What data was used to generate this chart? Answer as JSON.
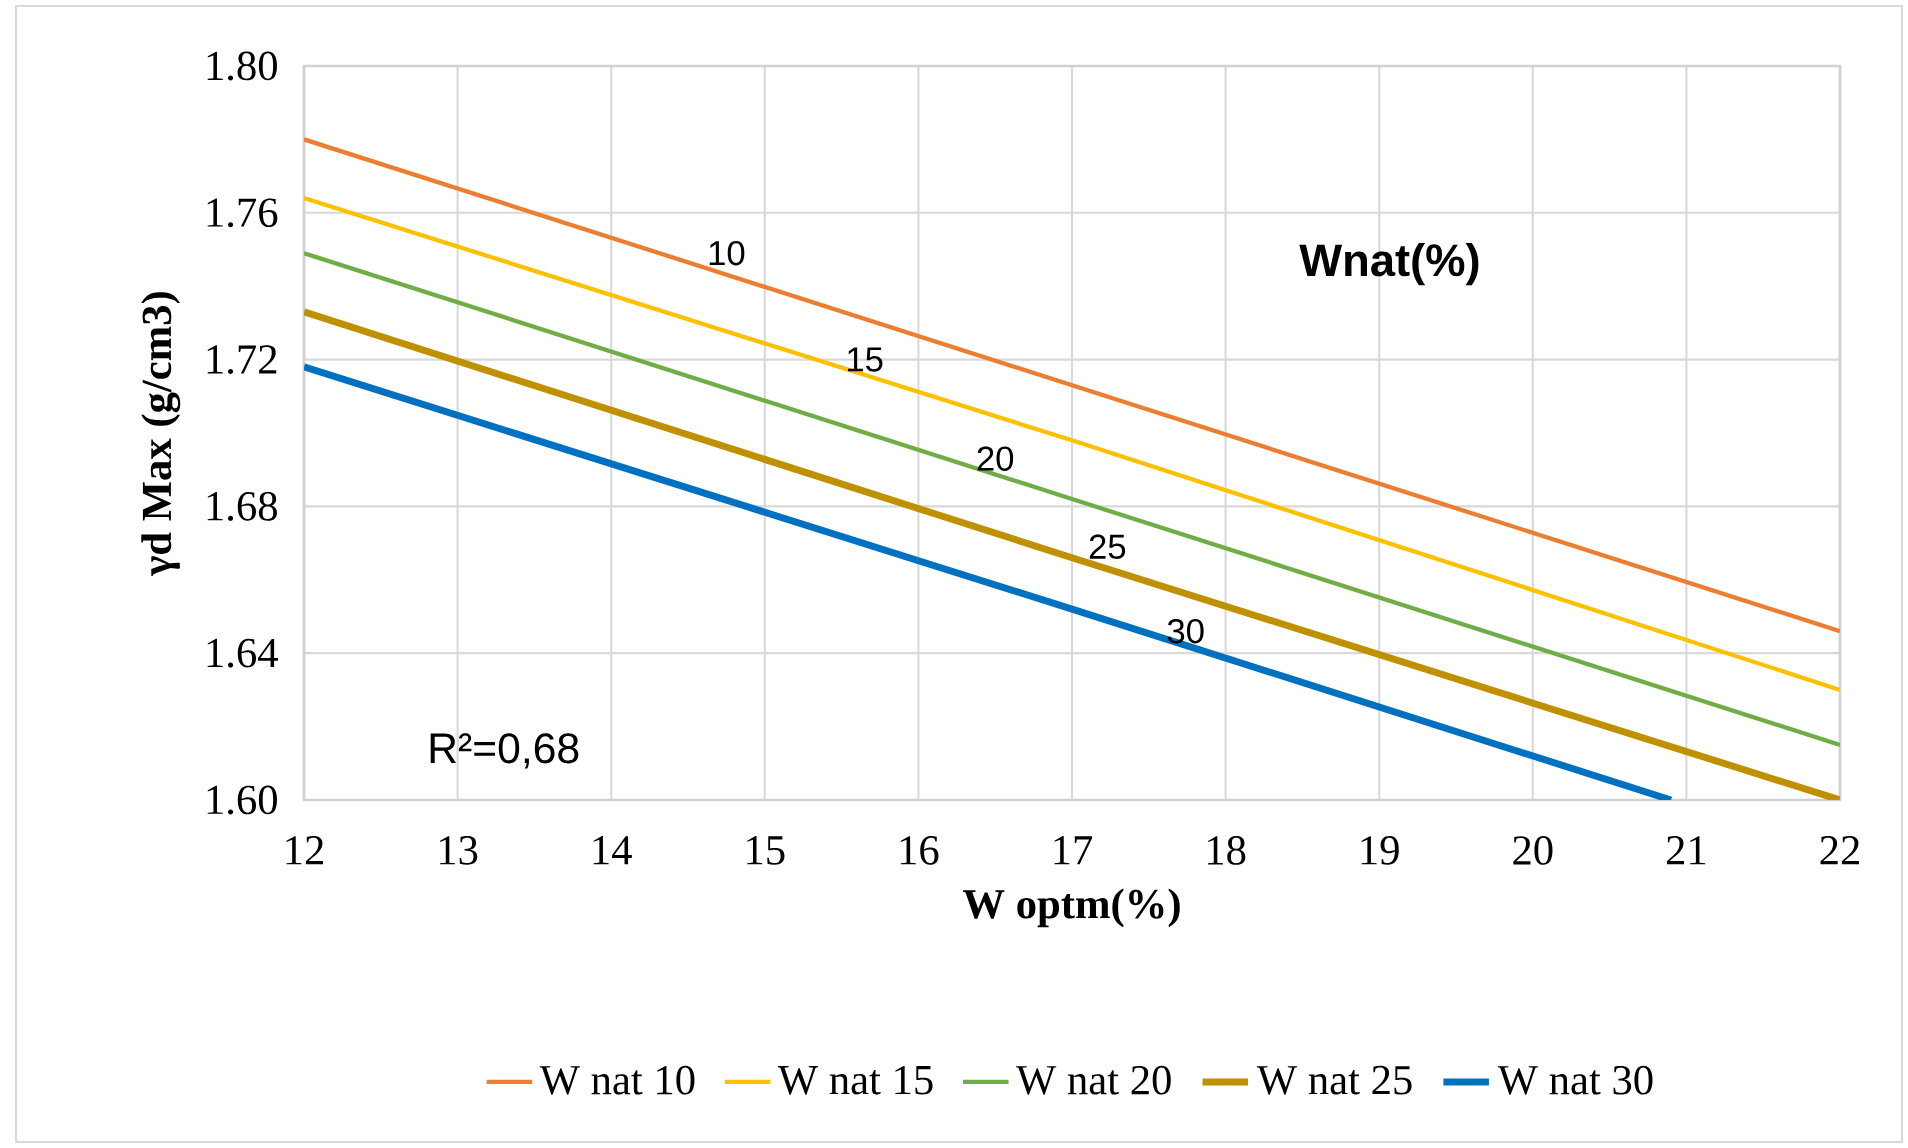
{
  "chart_data": {
    "type": "line",
    "xlabel": "W optm(%)",
    "ylabel": "γd Max (g/cm3)",
    "xlim": [
      12,
      22
    ],
    "ylim": [
      1.6,
      1.8
    ],
    "xticks": [
      12,
      13,
      14,
      15,
      16,
      17,
      18,
      19,
      20,
      21,
      22
    ],
    "yticks": [
      {
        "value": 1.6,
        "label": "1.60"
      },
      {
        "value": 1.64,
        "label": "1.64"
      },
      {
        "value": 1.68,
        "label": "1.68"
      },
      {
        "value": 1.72,
        "label": "1.72"
      },
      {
        "value": 1.76,
        "label": "1.76"
      },
      {
        "value": 1.8,
        "label": "1.80"
      }
    ],
    "grid": true,
    "legend": "bottom",
    "marker": "none",
    "line_style": "solid",
    "series": [
      {
        "name": "W nat 10",
        "color": "#ed7d31",
        "x": [
          12,
          17,
          22
        ],
        "values": [
          1.78,
          1.713,
          1.646
        ]
      },
      {
        "name": "W nat 15",
        "color": "#ffc000",
        "x": [
          12,
          17,
          22
        ],
        "values": [
          1.764,
          1.698,
          1.63
        ]
      },
      {
        "name": "W nat 20",
        "color": "#70ad47",
        "x": [
          12,
          17,
          22
        ],
        "values": [
          1.749,
          1.682,
          1.615
        ]
      },
      {
        "name": "W nat 25",
        "color": "#bf9000",
        "x": [
          12,
          17,
          22
        ],
        "values": [
          1.733,
          1.666,
          1.6
        ]
      },
      {
        "name": "W nat 30",
        "color": "#0070c0",
        "x": [
          12,
          17,
          20.9
        ],
        "values": [
          1.718,
          1.652,
          1.6
        ]
      }
    ],
    "annotations": [
      "10",
      "15",
      "20",
      "25",
      "30",
      "Wnat(%)",
      "R²=0,68"
    ]
  }
}
